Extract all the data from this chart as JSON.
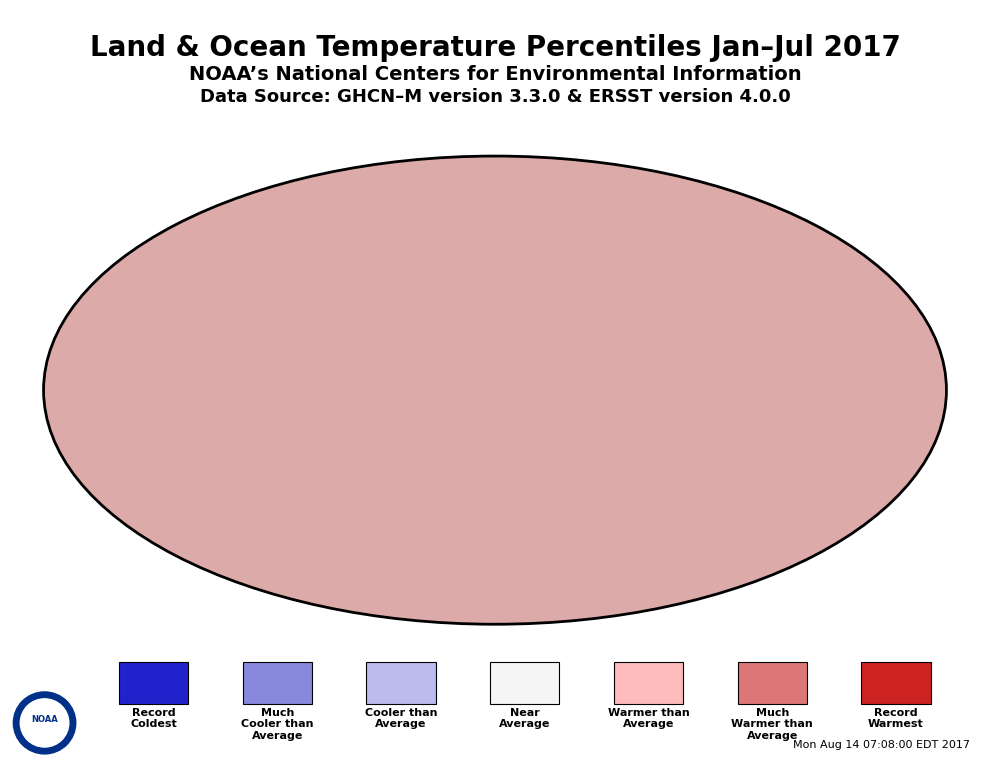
{
  "title": "Land & Ocean Temperature Percentiles Jan–Jul 2017",
  "subtitle1": "NOAA’s National Centers for Environmental Information",
  "subtitle2": "Data Source: GHCN–M version 3.3.0 & ERSST version 4.0.0",
  "timestamp": "Mon Aug 14 07:08:00 EDT 2017",
  "background_color": "#ffffff",
  "map_background": "#aaaaaa",
  "legend_items": [
    {
      "label": "Record\nColdest",
      "color": "#2222cc"
    },
    {
      "label": "Much\nCooler than\nAverage",
      "color": "#8888dd"
    },
    {
      "label": "Cooler than\nAverage",
      "color": "#bbbbee"
    },
    {
      "label": "Near\nAverage",
      "color": "#f5f5f5"
    },
    {
      "label": "Warmer than\nAverage",
      "color": "#ffbbbb"
    },
    {
      "label": "Much\nWarmer than\nAverage",
      "color": "#dd7777"
    },
    {
      "label": "Record\nWarmest",
      "color": "#cc2222"
    }
  ],
  "title_fontsize": 20,
  "subtitle1_fontsize": 14,
  "subtitle2_fontsize": 13
}
